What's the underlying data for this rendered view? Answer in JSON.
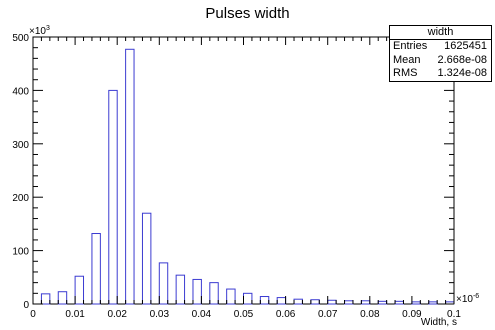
{
  "chart_data": {
    "type": "bar",
    "title": "Pulses width",
    "xlabel": "Width, s",
    "ylabel": "",
    "x_multiplier_label": "×10",
    "x_multiplier_exp": "-6",
    "y_multiplier_label": "×10",
    "y_multiplier_exp": "3",
    "xlim": [
      0,
      0.1
    ],
    "ylim": [
      0,
      500
    ],
    "x_ticks": [
      "0",
      "0.01",
      "0.02",
      "0.03",
      "0.04",
      "0.05",
      "0.06",
      "0.07",
      "0.08",
      "0.09",
      "0.1"
    ],
    "y_ticks": [
      "0",
      "100",
      "200",
      "300",
      "400",
      "500"
    ],
    "grid": false,
    "bar_color": "#3b3bd1",
    "bins": [
      {
        "x": 0.003,
        "value": 19
      },
      {
        "x": 0.007,
        "value": 23
      },
      {
        "x": 0.011,
        "value": 52
      },
      {
        "x": 0.015,
        "value": 132
      },
      {
        "x": 0.019,
        "value": 400
      },
      {
        "x": 0.023,
        "value": 477
      },
      {
        "x": 0.027,
        "value": 170
      },
      {
        "x": 0.031,
        "value": 77
      },
      {
        "x": 0.035,
        "value": 54
      },
      {
        "x": 0.039,
        "value": 46
      },
      {
        "x": 0.043,
        "value": 40
      },
      {
        "x": 0.047,
        "value": 28
      },
      {
        "x": 0.051,
        "value": 20
      },
      {
        "x": 0.055,
        "value": 14
      },
      {
        "x": 0.059,
        "value": 12
      },
      {
        "x": 0.063,
        "value": 9
      },
      {
        "x": 0.067,
        "value": 8
      },
      {
        "x": 0.071,
        "value": 7
      },
      {
        "x": 0.075,
        "value": 6
      },
      {
        "x": 0.079,
        "value": 6
      },
      {
        "x": 0.083,
        "value": 5
      },
      {
        "x": 0.087,
        "value": 5
      },
      {
        "x": 0.091,
        "value": 4
      },
      {
        "x": 0.095,
        "value": 4
      },
      {
        "x": 0.099,
        "value": 4
      }
    ],
    "stats": {
      "name": "width",
      "rows": [
        {
          "label": "Entries",
          "value": "1625451"
        },
        {
          "label": "Mean",
          "value": "2.668e-08"
        },
        {
          "label": "RMS",
          "value": "1.324e-08"
        }
      ]
    }
  }
}
